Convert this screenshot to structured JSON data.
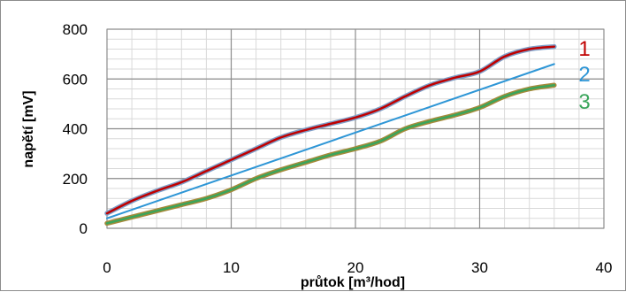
{
  "chart_data": {
    "type": "line",
    "title": "",
    "xlabel": "průtok  [m³/hod]",
    "ylabel": "napětí [mV]",
    "xlim": [
      0,
      40
    ],
    "ylim": [
      0,
      800
    ],
    "x_ticks": [
      0,
      10,
      20,
      30,
      40
    ],
    "y_ticks": [
      0,
      200,
      400,
      600,
      800
    ],
    "grid": true,
    "legend": "none",
    "series": [
      {
        "name": "1",
        "color": "#c00000",
        "outline_color": "#7f9fc8",
        "x": [
          0,
          2,
          4,
          6,
          8,
          10,
          12,
          14,
          16,
          18,
          20,
          22,
          24,
          26,
          28,
          30,
          32,
          34,
          36
        ],
        "y": [
          60,
          110,
          150,
          185,
          230,
          275,
          320,
          365,
          395,
          420,
          445,
          480,
          530,
          575,
          605,
          630,
          690,
          720,
          730
        ]
      },
      {
        "name": "2",
        "color": "#2e96d6",
        "outline_color": "",
        "x": [
          0,
          36
        ],
        "y": [
          40,
          660
        ]
      },
      {
        "name": "3",
        "color": "#3aa55b",
        "outline_color": "#a58a3a",
        "x": [
          0,
          2,
          4,
          6,
          8,
          10,
          12,
          14,
          16,
          18,
          20,
          22,
          24,
          26,
          28,
          30,
          32,
          34,
          36
        ],
        "y": [
          20,
          45,
          70,
          95,
          120,
          155,
          200,
          235,
          265,
          295,
          320,
          350,
          400,
          430,
          455,
          485,
          530,
          560,
          575
        ]
      }
    ]
  }
}
